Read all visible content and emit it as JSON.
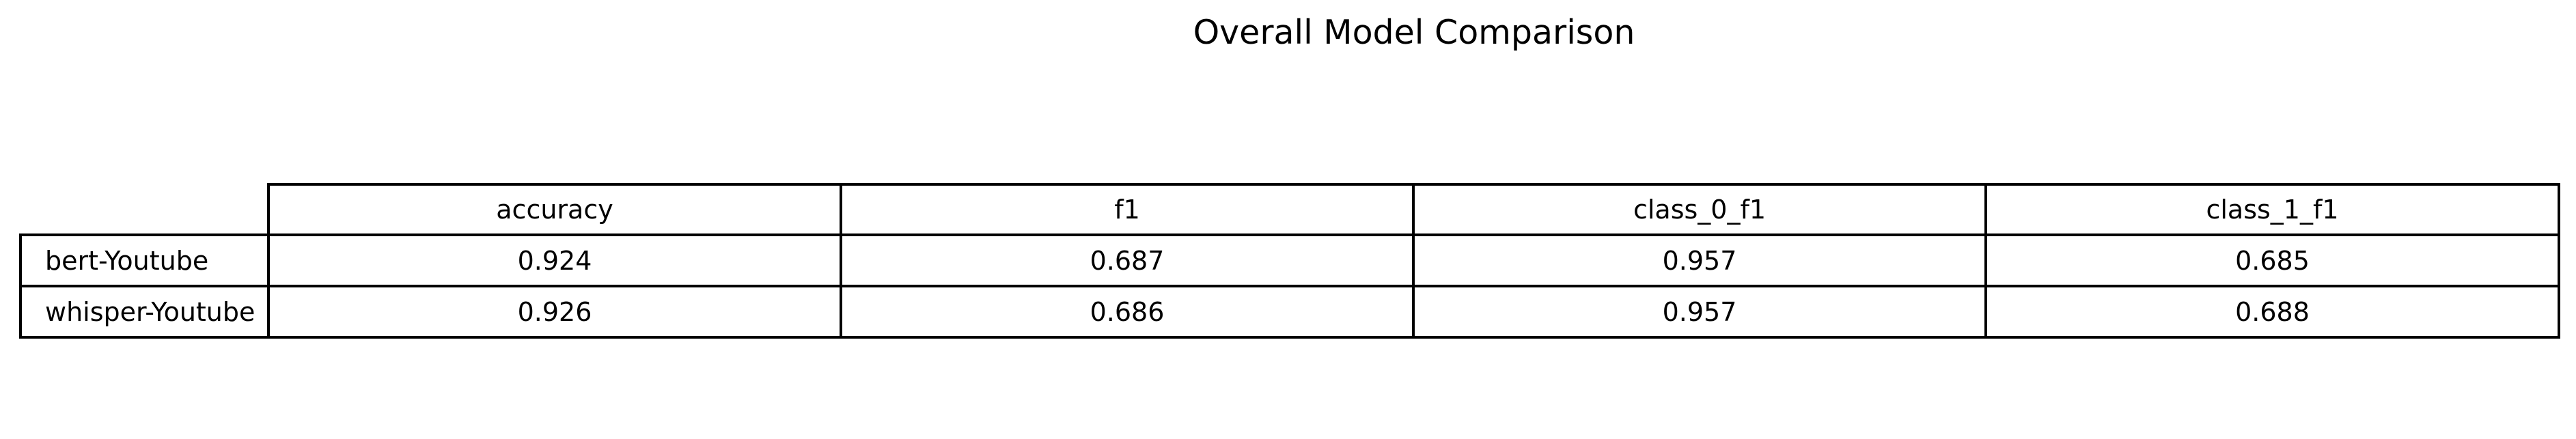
{
  "chart_data": {
    "type": "table",
    "title": "Overall Model Comparison",
    "columns": [
      "accuracy",
      "f1",
      "class_0_f1",
      "class_1_f1"
    ],
    "rows": [
      {
        "label": "bert-Youtube",
        "values": [
          "0.924",
          "0.687",
          "0.957",
          "0.685"
        ]
      },
      {
        "label": "whisper-Youtube",
        "values": [
          "0.926",
          "0.686",
          "0.957",
          "0.688"
        ]
      }
    ]
  }
}
